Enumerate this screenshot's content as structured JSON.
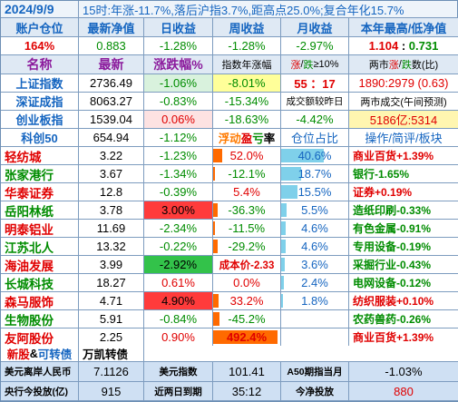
{
  "header": {
    "date": "2024/9/9",
    "summary": "15时:年涨-11.7%,落后沪指3.7%,距高点25.0%;复合年化15.7%"
  },
  "acct_header": [
    "账户仓位",
    "最新净值",
    "日收益",
    "周收益",
    "月收益",
    "本年最高/低净值"
  ],
  "acct_values": {
    "position": "164%",
    "nav": "0.883",
    "day": "-1.28%",
    "week": "-1.28%",
    "month": "-2.97%",
    "high": "1.104",
    "low": "0.731",
    "hl_sep": ":"
  },
  "index_header": {
    "name": "名称",
    "latest": "最新",
    "chg": "涨跌幅%",
    "ytd": "指数年涨幅",
    "zhang": "涨",
    "die": "跌",
    "sep": "/",
    "gt10": "≥10%",
    "two": "两市",
    "two_zhang": "涨",
    "two_die": "跌",
    "two_suffix": "数(比)"
  },
  "indices": [
    {
      "name": "上证指数",
      "latest": "2736.49",
      "chg": "-1.06%",
      "ytd": "-8.01%",
      "extra1": "55 ：17",
      "extra2": "1890:2979 (0.63)"
    },
    {
      "name": "深证成指",
      "latest": "8063.27",
      "chg": "-0.83%",
      "ytd": "-15.34%",
      "extra1": "成交额较昨日",
      "extra2": "两市成交(午间预测)"
    },
    {
      "name": "创业板指",
      "latest": "1539.04",
      "chg": "0.06%",
      "ytd": "-18.63%",
      "extra1": "-4.42%",
      "extra2": "5186亿:5314"
    },
    {
      "name": "科创50",
      "latest": "654.94",
      "chg": "-1.12%"
    }
  ],
  "holdings_header": {
    "fuying": "浮动",
    "ying": "盈",
    "kui": "亏",
    "lv": "率",
    "pos": "仓位占比",
    "op": "操作/简评/板块"
  },
  "holdings": [
    {
      "name": "轻纺城",
      "price": "3.22",
      "chg": "-1.23%",
      "pnl": "52.0%",
      "pnl_frac": 0.13,
      "pos": "40.6%",
      "pos_frac": 0.62,
      "note": "商业百货+1.39%"
    },
    {
      "name": "张家港行",
      "price": "3.67",
      "chg": "-1.34%",
      "pnl": "-12.1%",
      "pnl_frac": 0.03,
      "pos": "18.7%",
      "pos_frac": 0.29,
      "note": "银行-1.65%"
    },
    {
      "name": "华泰证券",
      "price": "12.8",
      "chg": "-0.39%",
      "pnl": "5.4%",
      "pnl_frac": 0.0,
      "pos": "15.5%",
      "pos_frac": 0.24,
      "note": "证券+0.19%"
    },
    {
      "name": "岳阳林纸",
      "price": "3.78",
      "chg": "3.00%",
      "pnl": "-36.3%",
      "pnl_frac": 0.07,
      "pos": "5.5%",
      "pos_frac": 0.08,
      "note": "造纸印刷-0.33%"
    },
    {
      "name": "明泰铝业",
      "price": "11.69",
      "chg": "-2.34%",
      "pnl": "-11.5%",
      "pnl_frac": 0.03,
      "pos": "4.6%",
      "pos_frac": 0.07,
      "note": "有色金属-0.91%"
    },
    {
      "name": "江苏北人",
      "price": "13.32",
      "chg": "-0.22%",
      "pnl": "-29.2%",
      "pnl_frac": 0.06,
      "pos": "4.6%",
      "pos_frac": 0.07,
      "note": "专用设备-0.19%"
    },
    {
      "name": "海油发展",
      "price": "3.99",
      "chg": "-2.92%",
      "pnl": "成本价-2.33",
      "pnl_frac": 0.0,
      "pos": "3.6%",
      "pos_frac": 0.05,
      "note": "采掘行业-0.43%"
    },
    {
      "name": "长城科技",
      "price": "18.27",
      "chg": "0.61%",
      "pnl": "0.0%",
      "pnl_frac": 0.0,
      "pos": "2.4%",
      "pos_frac": 0.04,
      "note": "电网设备-0.12%"
    },
    {
      "name": "森马服饰",
      "price": "4.71",
      "chg": "4.90%",
      "pnl": "33.2%",
      "pnl_frac": 0.08,
      "pos": "1.8%",
      "pos_frac": 0.03,
      "note": "纺织服装+0.10%"
    },
    {
      "name": "生物股份",
      "price": "5.91",
      "chg": "-0.84%",
      "pnl": "-45.2%",
      "pnl_frac": 0.09,
      "pos": "",
      "pos_frac": 0,
      "note": "农药兽药-0.26%"
    },
    {
      "name": "友阿股份",
      "price": "2.25",
      "chg": "0.90%",
      "pnl": "492.4%",
      "pnl_frac": 0.95,
      "pos": "",
      "pos_frac": 0,
      "note": "商业百货+1.39%"
    }
  ],
  "bonds": {
    "new": "新股",
    "amp": "&",
    "convert": "可转债",
    "wankai": "万凯转债"
  },
  "footer1": {
    "l1": "美元离岸人民币",
    "v1": "7.1126",
    "l2": "美元指数",
    "v2": "101.41",
    "l3": "A50期指当月",
    "v3": "-1.03%"
  },
  "footer2": {
    "l1": "央行今投放(亿)",
    "v1": "915",
    "l2": "近两日到期",
    "v2": "35:12",
    "l3": "今净投放",
    "v3": "880"
  },
  "colors": {
    "up": "#e00000",
    "down": "#008c00",
    "up_bg": "#ff3b3b",
    "down_bg": "#33c24a",
    "pos_bar": "#7fd0ea",
    "pnl_bar": "#ff6a00",
    "name": "#1565c0"
  }
}
